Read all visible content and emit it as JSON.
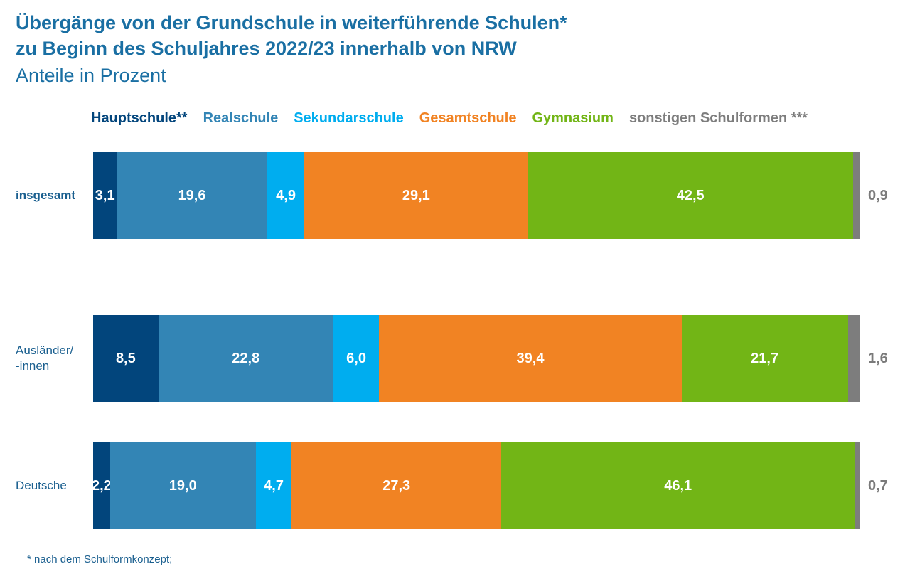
{
  "title_line1": "Übergänge von der Grundschule in weiterführende Schulen*",
  "title_line2": "zu Beginn des Schuljahres 2022/23 innerhalb von NRW",
  "subtitle": "Anteile in Prozent",
  "footnote": "*  nach dem Schulformkonzept;",
  "chart_data": {
    "type": "bar",
    "orientation": "horizontal",
    "stacked": true,
    "categories": [
      "insgesamt",
      "Ausländer/\n-innen",
      "Deutsche"
    ],
    "series": [
      {
        "name": "Hauptschule**",
        "color": "#02457c",
        "values": [
          3.1,
          8.5,
          2.2
        ]
      },
      {
        "name": "Realschule",
        "color": "#3385b5",
        "values": [
          19.6,
          22.8,
          19.0
        ]
      },
      {
        "name": "Sekundarschule",
        "color": "#00adef",
        "values": [
          4.9,
          6.0,
          4.7
        ]
      },
      {
        "name": "Gesamtschule",
        "color": "#f18323",
        "values": [
          29.1,
          39.4,
          27.3
        ]
      },
      {
        "name": "Gymnasium",
        "color": "#72b516",
        "values": [
          42.5,
          21.7,
          46.1
        ]
      },
      {
        "name": "sonstigen Schulformen ***",
        "color": "#7d7d7d",
        "values": [
          0.9,
          1.6,
          0.7
        ]
      }
    ],
    "value_labels": [
      [
        "3,1",
        "19,6",
        "4,9",
        "29,1",
        "42,5",
        "0,9"
      ],
      [
        "8,5",
        "22,8",
        "6,0",
        "39,4",
        "21,7",
        "1,6"
      ],
      [
        "2,2",
        "19,0",
        "4,7",
        "27,3",
        "46,1",
        "0,7"
      ]
    ],
    "legend_placement": "top",
    "label_colors": {
      "default": "#1a5f8f",
      "bar_text": "#ffffff",
      "outside_text": "#7a7a7a"
    },
    "highlight_row": 0
  }
}
